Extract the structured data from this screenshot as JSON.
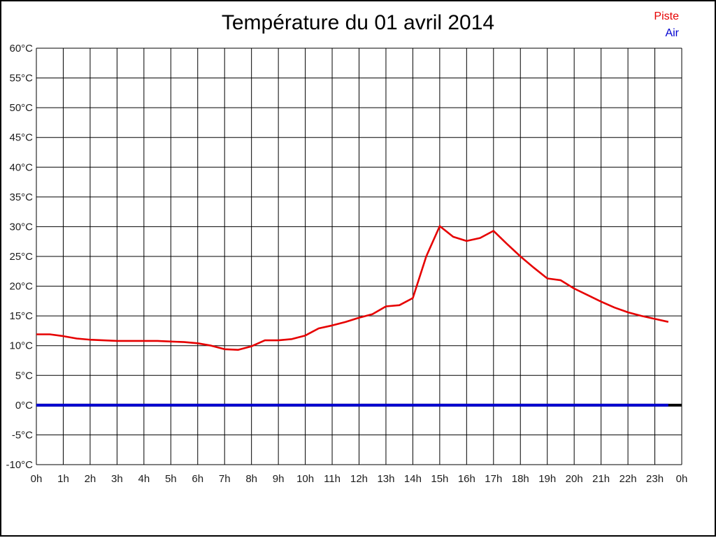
{
  "title": "Température du 01 avril 2014",
  "legend": {
    "items": [
      {
        "label": "Piste",
        "color": "#e60000"
      },
      {
        "label": "Air",
        "color": "#0000d0"
      }
    ]
  },
  "chart_data": {
    "type": "line",
    "title": "Température du 01 avril 2014",
    "xlabel": "",
    "ylabel": "",
    "xlim": [
      0,
      24
    ],
    "ylim": [
      -10,
      60
    ],
    "grid": true,
    "grid_color": "#000000",
    "background_color": "#ffffff",
    "legend_position": "top-right",
    "x_tick_hours": [
      0,
      1,
      2,
      3,
      4,
      5,
      6,
      7,
      8,
      9,
      10,
      11,
      12,
      13,
      14,
      15,
      16,
      17,
      18,
      19,
      20,
      21,
      22,
      23,
      24
    ],
    "x_tick_labels": [
      "0h",
      "1h",
      "2h",
      "3h",
      "4h",
      "5h",
      "6h",
      "7h",
      "8h",
      "9h",
      "10h",
      "11h",
      "12h",
      "13h",
      "14h",
      "15h",
      "16h",
      "17h",
      "18h",
      "19h",
      "20h",
      "21h",
      "22h",
      "23h",
      "0h"
    ],
    "y_tick_values": [
      60,
      55,
      50,
      45,
      40,
      35,
      30,
      25,
      20,
      15,
      10,
      5,
      0,
      -5,
      -10
    ],
    "y_tick_labels": [
      "60°C",
      "55°C",
      "50°C",
      "45°C",
      "40°C",
      "35°C",
      "30°C",
      "25°C",
      "20°C",
      "15°C",
      "10°C",
      "5°C",
      "0°C",
      "-5°C",
      "-10°C"
    ],
    "zero_line": {
      "value": 0,
      "color": "#000000",
      "width": 4
    },
    "series": [
      {
        "name": "Piste",
        "color": "#e60000",
        "width": 2.6,
        "x": [
          0,
          0.5,
          1,
          1.5,
          2,
          2.5,
          3,
          3.5,
          4,
          4.5,
          5,
          5.5,
          6,
          6.5,
          7,
          7.5,
          8,
          8.5,
          9,
          9.5,
          10,
          10.5,
          11,
          11.5,
          12,
          12.5,
          13,
          13.5,
          14,
          14.5,
          15,
          15.5,
          16,
          16.5,
          17,
          17.5,
          18,
          18.5,
          19,
          19.5,
          20,
          20.5,
          21,
          21.5,
          22,
          22.5,
          23,
          23.5
        ],
        "values": [
          11.9,
          11.9,
          11.6,
          11.2,
          11.0,
          10.9,
          10.8,
          10.8,
          10.8,
          10.8,
          10.7,
          10.6,
          10.4,
          10.0,
          9.4,
          9.3,
          9.9,
          10.9,
          10.9,
          11.1,
          11.7,
          12.9,
          13.4,
          14.0,
          14.7,
          15.3,
          16.6,
          16.8,
          18.0,
          25.0,
          30.1,
          28.3,
          27.6,
          28.1,
          29.3,
          27.1,
          25.0,
          23.1,
          21.3,
          21.0,
          19.6,
          18.5,
          17.4,
          16.4,
          15.6,
          15.0,
          14.5,
          14.0
        ]
      },
      {
        "name": "Air",
        "color": "#0000d0",
        "width": 4,
        "x": [
          0,
          23.5
        ],
        "values": [
          0,
          0
        ]
      }
    ]
  }
}
